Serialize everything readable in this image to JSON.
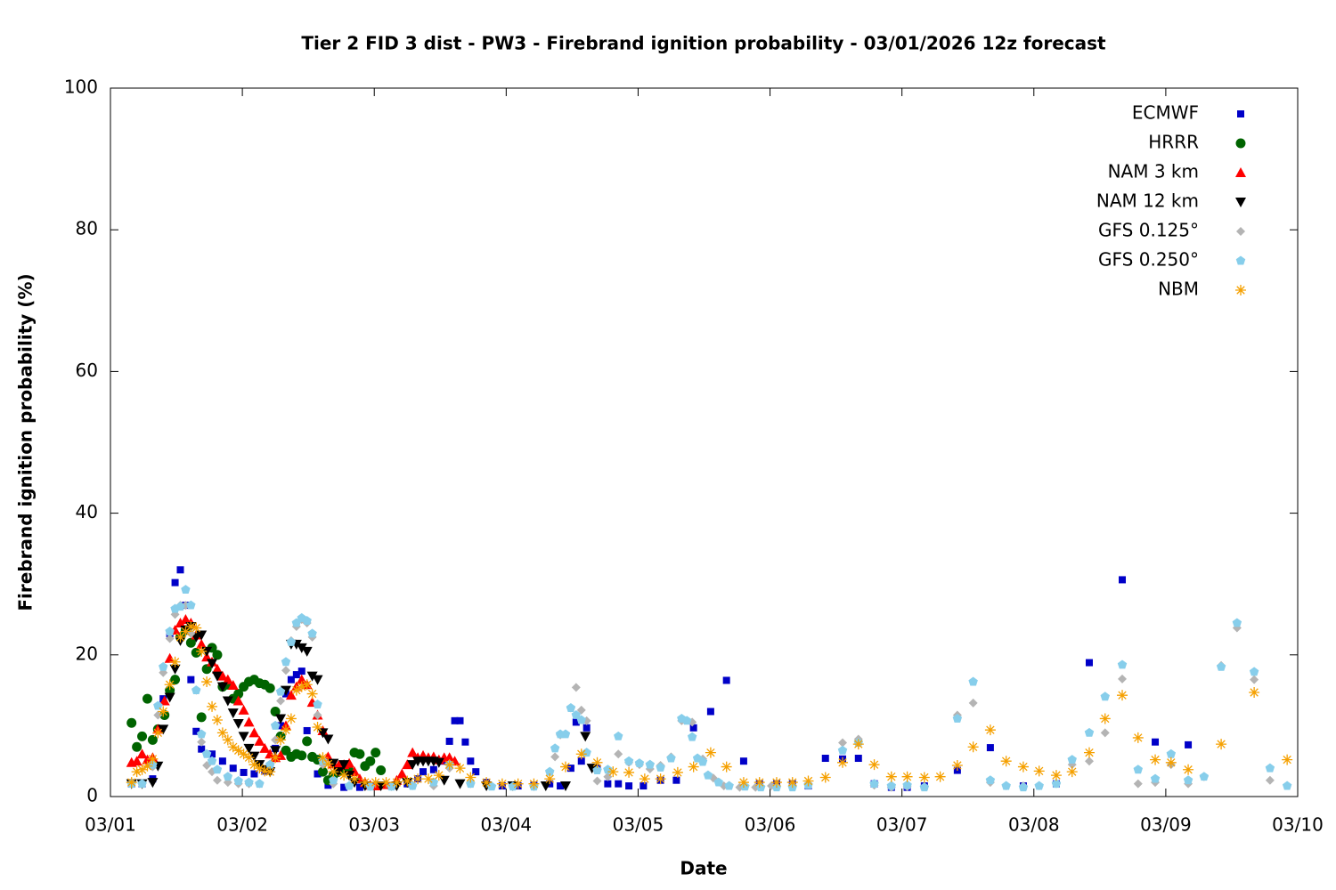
{
  "chart_data": {
    "type": "scatter",
    "title": "Tier 2 FID 3 dist - PW3 - Firebrand ignition probability - 03/01/2026 12z forecast",
    "x_label": "Date",
    "y_label": "Firebrand ignition probability (%)",
    "xlim": [
      0,
      9
    ],
    "ylim": [
      0,
      100
    ],
    "xticks": [
      {
        "value": 0,
        "label": "03/01"
      },
      {
        "value": 1,
        "label": "03/02"
      },
      {
        "value": 2,
        "label": "03/03"
      },
      {
        "value": 3,
        "label": "03/04"
      },
      {
        "value": 4,
        "label": "03/05"
      },
      {
        "value": 5,
        "label": "03/06"
      },
      {
        "value": 6,
        "label": "03/07"
      },
      {
        "value": 7,
        "label": "03/08"
      },
      {
        "value": 8,
        "label": "03/09"
      },
      {
        "value": 9,
        "label": "03/10"
      }
    ],
    "yticks": [
      0,
      20,
      40,
      60,
      80,
      100
    ],
    "legend": "top-right",
    "series": [
      {
        "name": "ECMWF",
        "color": "#0000c8",
        "marker": "square",
        "x": [
          0.16,
          0.24,
          0.32,
          0.4,
          0.45,
          0.49,
          0.53,
          0.57,
          0.61,
          0.65,
          0.69,
          0.77,
          0.85,
          0.93,
          1.01,
          1.09,
          1.17,
          1.21,
          1.25,
          1.29,
          1.33,
          1.37,
          1.41,
          1.45,
          1.49,
          1.53,
          1.57,
          1.65,
          1.77,
          1.89,
          2.01,
          2.13,
          2.25,
          2.33,
          2.37,
          2.45,
          2.53,
          2.57,
          2.61,
          2.65,
          2.69,
          2.73,
          2.77,
          2.85,
          2.97,
          3.09,
          3.21,
          3.33,
          3.41,
          3.49,
          3.53,
          3.57,
          3.61,
          3.69,
          3.77,
          3.85,
          3.93,
          4.04,
          4.17,
          4.29,
          4.42,
          4.55,
          4.67,
          4.8,
          4.92,
          5.05,
          5.17,
          5.29,
          5.42,
          5.55,
          5.67,
          5.79,
          5.92,
          6.04,
          6.17,
          6.42,
          6.67,
          6.92,
          7.17,
          7.42,
          7.67,
          7.92,
          8.17
        ],
        "values": [
          1.8,
          1.8,
          2.5,
          13.8,
          23,
          30.2,
          32,
          27,
          16.5,
          9.2,
          6.7,
          6,
          5,
          4,
          3.4,
          3.2,
          3.6,
          4.2,
          6.8,
          10,
          14.5,
          16.5,
          17.2,
          17.7,
          9.3,
          5.6,
          3.2,
          1.6,
          1.3,
          1.3,
          1.5,
          1.5,
          1.8,
          2.5,
          3.5,
          3.8,
          5,
          7.8,
          10.7,
          10.7,
          7.7,
          5,
          3.5,
          2,
          1.5,
          1.5,
          1.6,
          1.8,
          1.5,
          4,
          10.5,
          5,
          9.7,
          4,
          1.8,
          1.8,
          1.5,
          1.5,
          2.3,
          2.3,
          9.7,
          12,
          16.4,
          5,
          1.8,
          1.8,
          1.8,
          1.5,
          5.4,
          5.3,
          5.4,
          1.8,
          1.3,
          1.3,
          1.5,
          3.7,
          6.9,
          1.5,
          1.8,
          18.9,
          30.6,
          7.7,
          7.3
        ]
      },
      {
        "name": "HRRR",
        "color": "#006400",
        "marker": "circle",
        "x": [
          0.16,
          0.2,
          0.24,
          0.28,
          0.32,
          0.36,
          0.41,
          0.45,
          0.49,
          0.53,
          0.57,
          0.61,
          0.65,
          0.69,
          0.73,
          0.77,
          0.81,
          0.85,
          0.89,
          0.93,
          0.97,
          1.01,
          1.05,
          1.09,
          1.13,
          1.17,
          1.21,
          1.25,
          1.29,
          1.33,
          1.37,
          1.41,
          1.45,
          1.49,
          1.53,
          1.57,
          1.61,
          1.65,
          1.69,
          1.73,
          1.77,
          1.81,
          1.85,
          1.89,
          1.93,
          1.97,
          2.01,
          2.05
        ],
        "values": [
          10.4,
          7,
          8.5,
          13.8,
          8,
          9.5,
          11.5,
          15,
          16.5,
          22.5,
          23.5,
          21.7,
          20.3,
          11.2,
          18,
          21,
          20,
          15.5,
          15.8,
          13.8,
          14.5,
          15.5,
          16.2,
          16.5,
          16,
          15.8,
          15.3,
          12,
          8.5,
          6.5,
          5.6,
          6,
          5.8,
          7.8,
          5.6,
          5.2,
          3.5,
          2.3,
          3,
          3.5,
          3.8,
          3.6,
          6.2,
          6,
          4.3,
          5,
          6.2,
          3.7
        ]
      },
      {
        "name": "NAM 3 km",
        "color": "#ff0000",
        "marker": "triangle-up",
        "x": [
          0.16,
          0.2,
          0.24,
          0.28,
          0.32,
          0.36,
          0.41,
          0.45,
          0.49,
          0.53,
          0.57,
          0.61,
          0.65,
          0.69,
          0.73,
          0.77,
          0.81,
          0.85,
          0.89,
          0.93,
          0.97,
          1.01,
          1.05,
          1.09,
          1.13,
          1.17,
          1.21,
          1.25,
          1.29,
          1.33,
          1.37,
          1.41,
          1.45,
          1.49,
          1.53,
          1.57,
          1.61,
          1.65,
          1.69,
          1.73,
          1.77,
          1.81,
          1.85,
          1.89,
          1.93,
          1.97,
          2.01,
          2.09,
          2.17,
          2.21,
          2.25,
          2.29,
          2.33,
          2.37,
          2.41,
          2.45,
          2.49,
          2.53,
          2.57,
          2.61
        ],
        "values": [
          4.8,
          5,
          6,
          5.2,
          5.5,
          9.5,
          13.5,
          19.5,
          23.5,
          24.5,
          25,
          24.5,
          22.8,
          21.5,
          19.7,
          19,
          18,
          17,
          16.5,
          15.7,
          13.5,
          12.2,
          10.5,
          9,
          7.8,
          6.8,
          6,
          5.5,
          5.8,
          10,
          14.3,
          15.5,
          16.5,
          15.8,
          13.3,
          11.5,
          9.3,
          5.6,
          4.6,
          4.4,
          4.5,
          4.7,
          3.5,
          2.5,
          2,
          1.6,
          1.5,
          1.7,
          2.3,
          3.2,
          4.5,
          6.2,
          5.5,
          5.8,
          5.5,
          5.6,
          5.2,
          5.5,
          5.5,
          5
        ]
      },
      {
        "name": "NAM 12 km",
        "color": "#000000",
        "marker": "triangle-down",
        "x": [
          0.16,
          0.24,
          0.32,
          0.36,
          0.4,
          0.45,
          0.49,
          0.53,
          0.57,
          0.61,
          0.65,
          0.69,
          0.73,
          0.77,
          0.81,
          0.85,
          0.89,
          0.93,
          0.97,
          1.01,
          1.05,
          1.09,
          1.13,
          1.17,
          1.21,
          1.25,
          1.29,
          1.33,
          1.37,
          1.41,
          1.45,
          1.49,
          1.53,
          1.57,
          1.61,
          1.65,
          1.69,
          1.73,
          1.77,
          1.81,
          1.85,
          1.93,
          2.05,
          2.17,
          2.25,
          2.29,
          2.33,
          2.37,
          2.41,
          2.45,
          2.49,
          2.53,
          2.65,
          2.85,
          3.05,
          3.3,
          3.45,
          3.6,
          3.65
        ],
        "values": [
          1.8,
          1.8,
          2,
          4.3,
          9.5,
          14,
          18,
          22,
          23.5,
          24,
          22.5,
          22.8,
          20.5,
          18.8,
          17,
          15.5,
          13.5,
          11.8,
          10.3,
          8.5,
          6.8,
          5.7,
          4.5,
          3.8,
          3.5,
          6.5,
          11,
          15,
          21.5,
          21.5,
          21,
          20.5,
          17,
          16.5,
          9,
          8.1,
          4.7,
          3.5,
          4.5,
          3,
          2,
          1.5,
          1.5,
          1.5,
          2,
          4.5,
          5,
          5,
          5,
          5,
          4.8,
          2.3,
          1.8,
          1.5,
          1.5,
          1.5,
          1.5,
          8.5,
          4
        ]
      },
      {
        "name": "GFS 0.125°",
        "color": "#b4b4b4",
        "marker": "diamond",
        "x": [
          0.16,
          0.24,
          0.32,
          0.36,
          0.4,
          0.45,
          0.49,
          0.53,
          0.57,
          0.61,
          0.65,
          0.69,
          0.73,
          0.77,
          0.81,
          0.89,
          0.97,
          1.05,
          1.13,
          1.21,
          1.25,
          1.29,
          1.33,
          1.37,
          1.41,
          1.45,
          1.49,
          1.53,
          1.57,
          1.61,
          1.69,
          1.81,
          1.97,
          2.13,
          2.29,
          2.45,
          2.57,
          2.73,
          2.89,
          3.05,
          3.21,
          3.33,
          3.37,
          3.41,
          3.49,
          3.53,
          3.57,
          3.61,
          3.69,
          3.77,
          3.85,
          3.93,
          4.01,
          4.09,
          4.17,
          4.25,
          4.33,
          4.41,
          4.49,
          4.57,
          4.65,
          4.77,
          4.89,
          5.01,
          5.17,
          5.29,
          5.55,
          5.67,
          5.79,
          5.92,
          6.04,
          6.17,
          6.42,
          6.54,
          6.67,
          6.79,
          6.92,
          7.04,
          7.17,
          7.29,
          7.42,
          7.54,
          7.67,
          7.79,
          7.92,
          8.04,
          8.17,
          8.29,
          8.42,
          8.54,
          8.67,
          8.79
        ],
        "values": [
          1.8,
          1.8,
          4.2,
          11.5,
          17.5,
          22.3,
          25.7,
          27,
          27,
          23,
          15,
          7.7,
          4.4,
          3.5,
          2.3,
          2,
          1.8,
          1.8,
          1.8,
          4.5,
          8,
          13.5,
          17.8,
          22,
          24,
          25,
          24.5,
          22.5,
          11.5,
          4.5,
          1.8,
          1.5,
          1.4,
          1.4,
          1.5,
          1.5,
          4,
          1.8,
          1.5,
          1.4,
          1.4,
          3.5,
          5.6,
          8.7,
          12.5,
          15.4,
          12.2,
          10.7,
          2.2,
          2.8,
          6,
          4.8,
          4.5,
          3.9,
          4.4,
          5.6,
          10.7,
          10.5,
          5.3,
          2.6,
          1.5,
          1.3,
          1.3,
          1.5,
          1.6,
          1.8,
          7.6,
          8.1,
          1.6,
          1.3,
          1.4,
          1.4,
          11.5,
          13.2,
          2,
          1.5,
          1.5,
          1.5,
          1.8,
          4.5,
          5,
          9,
          16.6,
          1.8,
          2,
          4.5,
          1.8,
          2.8,
          18.5,
          23.8,
          16.5,
          2.3
        ]
      },
      {
        "name": "GFS 0.250°",
        "color": "#87ceeb",
        "marker": "pentagon",
        "x": [
          0.16,
          0.24,
          0.32,
          0.36,
          0.4,
          0.45,
          0.49,
          0.53,
          0.57,
          0.61,
          0.65,
          0.69,
          0.73,
          0.77,
          0.81,
          0.89,
          0.97,
          1.05,
          1.13,
          1.21,
          1.25,
          1.29,
          1.33,
          1.37,
          1.41,
          1.45,
          1.49,
          1.53,
          1.57,
          1.61,
          1.69,
          1.81,
          1.97,
          2.13,
          2.29,
          2.45,
          2.57,
          2.73,
          2.89,
          3.05,
          3.21,
          3.33,
          3.37,
          3.41,
          3.45,
          3.49,
          3.53,
          3.57,
          3.61,
          3.69,
          3.77,
          3.85,
          3.93,
          4.01,
          4.09,
          4.17,
          4.25,
          4.33,
          4.37,
          4.41,
          4.45,
          4.49,
          4.53,
          4.61,
          4.69,
          4.81,
          4.93,
          5.05,
          5.17,
          5.29,
          5.55,
          5.67,
          5.79,
          5.92,
          6.04,
          6.17,
          6.42,
          6.54,
          6.67,
          6.79,
          6.92,
          7.04,
          7.17,
          7.29,
          7.42,
          7.54,
          7.67,
          7.79,
          7.92,
          8.04,
          8.17,
          8.29,
          8.42,
          8.54,
          8.67,
          8.79,
          8.92
        ],
        "values": [
          1.8,
          1.8,
          4.5,
          12.8,
          18.3,
          23.3,
          26.5,
          26.8,
          29.2,
          27,
          15,
          8.8,
          6,
          5,
          3.8,
          2.8,
          2.2,
          2,
          1.8,
          4.5,
          10,
          14.8,
          19,
          21.8,
          24.5,
          25.2,
          24.8,
          23,
          13,
          5,
          2.3,
          1.5,
          1.4,
          1.4,
          1.5,
          2,
          4.5,
          1.8,
          1.4,
          1.4,
          1.4,
          3.5,
          6.8,
          8.8,
          8.8,
          12.5,
          11.5,
          10.8,
          6.2,
          3.7,
          3.8,
          8.5,
          5,
          4.7,
          4.5,
          4.1,
          5.4,
          11,
          10.7,
          8.4,
          5.4,
          4.9,
          3,
          2,
          1.5,
          1.4,
          1.3,
          1.3,
          1.3,
          1.6,
          6.5,
          7.6,
          1.8,
          1.5,
          1.6,
          1.3,
          11,
          16.2,
          2.3,
          1.5,
          1.3,
          1.5,
          1.8,
          5.2,
          9,
          14.1,
          18.6,
          3.8,
          2.5,
          6,
          2.3,
          2.8,
          18.3,
          24.5,
          17.6,
          4,
          1.5
        ]
      },
      {
        "name": "NBM",
        "color": "#f5a000",
        "marker": "asterisk",
        "x": [
          0.16,
          0.2,
          0.24,
          0.28,
          0.32,
          0.36,
          0.4,
          0.45,
          0.49,
          0.53,
          0.57,
          0.61,
          0.65,
          0.69,
          0.73,
          0.77,
          0.81,
          0.85,
          0.89,
          0.93,
          0.97,
          1.01,
          1.05,
          1.09,
          1.13,
          1.17,
          1.21,
          1.25,
          1.29,
          1.33,
          1.37,
          1.41,
          1.45,
          1.49,
          1.53,
          1.57,
          1.61,
          1.65,
          1.69,
          1.77,
          1.85,
          1.93,
          2.01,
          2.09,
          2.17,
          2.25,
          2.33,
          2.41,
          2.49,
          2.57,
          2.65,
          2.73,
          2.85,
          2.97,
          3.09,
          3.21,
          3.33,
          3.45,
          3.57,
          3.69,
          3.81,
          3.93,
          4.05,
          4.17,
          4.3,
          4.42,
          4.55,
          4.67,
          4.8,
          4.92,
          5.05,
          5.17,
          5.29,
          5.42,
          5.55,
          5.67,
          5.79,
          5.92,
          6.04,
          6.17,
          6.29,
          6.42,
          6.54,
          6.67,
          6.79,
          6.92,
          7.04,
          7.17,
          7.29,
          7.42,
          7.54,
          7.67,
          7.79,
          7.92,
          8.04,
          8.17,
          8.42,
          8.67,
          8.92
        ],
        "values": [
          2,
          3.5,
          3.8,
          4.3,
          5.3,
          9,
          12,
          15.8,
          19,
          22.5,
          23.3,
          24,
          23.8,
          20.5,
          16.2,
          12.7,
          10.8,
          9,
          8,
          7,
          6.5,
          6,
          5.5,
          4.5,
          4,
          3.6,
          3.5,
          5.5,
          8,
          9.4,
          11,
          15,
          15.5,
          15.8,
          14.5,
          9.8,
          5.5,
          4.6,
          3.5,
          3,
          2.5,
          2,
          2,
          2,
          2,
          2.2,
          2.5,
          2.5,
          3,
          4.5,
          4,
          2.7,
          2,
          1.8,
          1.8,
          1.8,
          2.5,
          4.2,
          6,
          4.8,
          3.5,
          3.4,
          2.5,
          2.5,
          3.4,
          4.2,
          6.2,
          4.2,
          2,
          2,
          2,
          2,
          2.2,
          2.7,
          4.8,
          7.4,
          4.5,
          2.8,
          2.8,
          2.7,
          2.8,
          4.4,
          7,
          9.4,
          5,
          4.2,
          3.6,
          3,
          3.5,
          6.2,
          11,
          14.3,
          8.3,
          5.2,
          4.8,
          3.8,
          7.4,
          14.7,
          5.2
        ]
      }
    ]
  }
}
